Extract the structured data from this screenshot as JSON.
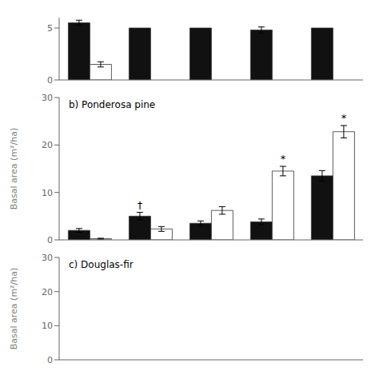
{
  "chart_data": [
    {
      "type": "bar",
      "categories": [
        null,
        null,
        null,
        null,
        null
      ],
      "series": [
        {
          "color": "#111111",
          "values": [
            5.5,
            5.0,
            5.0,
            4.8,
            5.0
          ],
          "errors": [
            0.25,
            0.0,
            0.0,
            0.3,
            0.0
          ]
        },
        {
          "color": "#ffffff",
          "values": [
            1.5,
            0.0,
            0.0,
            0.0,
            0.0
          ],
          "errors": [
            0.25,
            0.0,
            0.0,
            0.0,
            0.0
          ]
        }
      ],
      "ylim": [
        0,
        6
      ],
      "yticks": [
        0,
        5
      ],
      "grid": false,
      "tick_labels": "y"
    },
    {
      "type": "bar",
      "title": "b) Ponderosa pine",
      "ylabel": "Basal area (m²/ha)",
      "categories": [
        null,
        null,
        null,
        null,
        null
      ],
      "series": [
        {
          "color": "#111111",
          "values": [
            2.0,
            5.0,
            3.5,
            3.8,
            13.5
          ],
          "errors": [
            0.4,
            0.8,
            0.5,
            0.6,
            1.1
          ],
          "annotations": [
            null,
            "†",
            null,
            null,
            null
          ]
        },
        {
          "color": "#ffffff",
          "values": [
            0.25,
            2.3,
            6.2,
            14.5,
            22.8
          ],
          "errors": [
            0.1,
            0.5,
            0.8,
            1.0,
            1.3
          ],
          "annotations": [
            null,
            null,
            null,
            "*",
            "*"
          ]
        }
      ],
      "ylim": [
        0,
        30
      ],
      "yticks": [
        0,
        10,
        20,
        30
      ],
      "grid": false,
      "tick_labels": "y"
    },
    {
      "type": "bar",
      "title": "c) Douglas-fir",
      "ylabel": "Basal area (m²/ha)",
      "categories": [
        null,
        null,
        null,
        null,
        null
      ],
      "series": [],
      "ylim": [
        0,
        30
      ],
      "yticks": [
        0,
        10,
        20,
        30
      ],
      "grid": false,
      "tick_labels": "y"
    }
  ]
}
